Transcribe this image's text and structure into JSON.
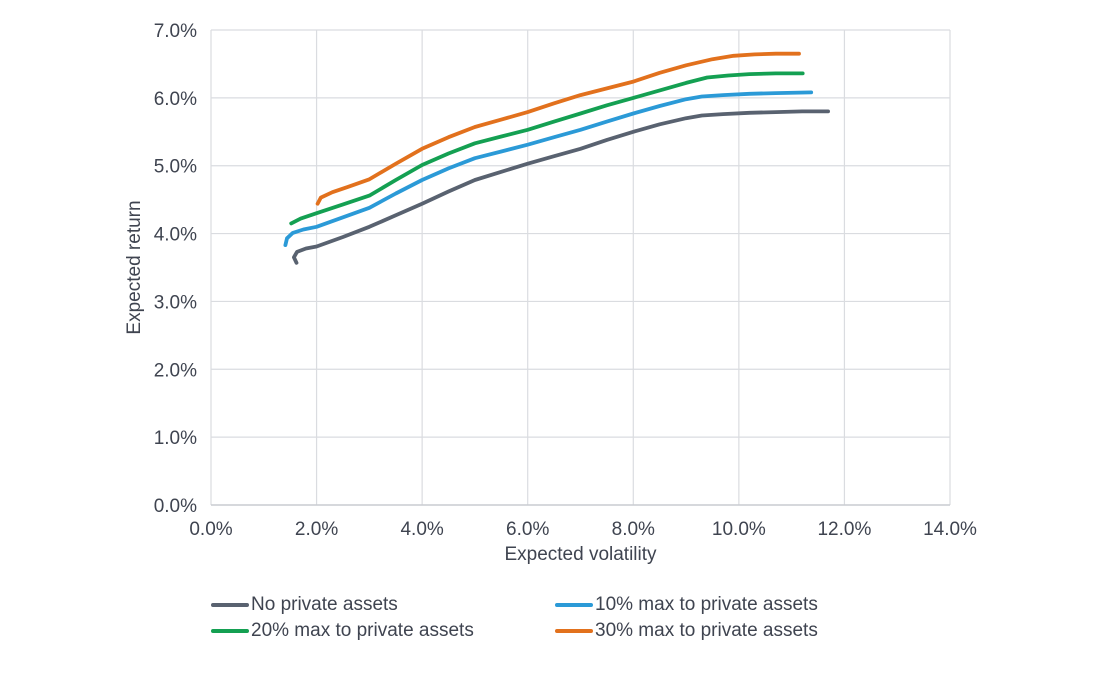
{
  "chart_data": {
    "type": "line",
    "title": "",
    "xlabel": "Expected volatility",
    "ylabel": "Expected return",
    "xlim": [
      0,
      14
    ],
    "ylim": [
      0,
      7
    ],
    "x_ticks": [
      "0.0%",
      "2.0%",
      "4.0%",
      "6.0%",
      "8.0%",
      "10.0%",
      "12.0%",
      "14.0%"
    ],
    "x_tick_values": [
      0,
      2,
      4,
      6,
      8,
      10,
      12,
      14
    ],
    "y_ticks": [
      "0.0%",
      "1.0%",
      "2.0%",
      "3.0%",
      "4.0%",
      "5.0%",
      "6.0%",
      "7.0%"
    ],
    "y_tick_values": [
      0,
      1,
      2,
      3,
      4,
      5,
      6,
      7
    ],
    "grid": true,
    "legend_position": "bottom",
    "units": "percent",
    "colors": {
      "grid": "#DADCE0",
      "axis": "#C9CCD1",
      "text": "#3F4450",
      "background": "#FFFFFF"
    },
    "series": [
      {
        "id": "no-private-assets",
        "name": "No private assets",
        "color": "#596270",
        "points": [
          [
            1.62,
            3.57
          ],
          [
            1.57,
            3.65
          ],
          [
            1.63,
            3.73
          ],
          [
            1.8,
            3.78
          ],
          [
            2.0,
            3.81
          ],
          [
            2.5,
            3.95
          ],
          [
            3.0,
            4.1
          ],
          [
            3.5,
            4.27
          ],
          [
            4.0,
            4.44
          ],
          [
            4.5,
            4.62
          ],
          [
            5.0,
            4.79
          ],
          [
            5.5,
            4.91
          ],
          [
            6.0,
            5.03
          ],
          [
            6.5,
            5.14
          ],
          [
            7.0,
            5.25
          ],
          [
            7.5,
            5.38
          ],
          [
            8.0,
            5.5
          ],
          [
            8.5,
            5.61
          ],
          [
            9.0,
            5.7
          ],
          [
            9.3,
            5.74
          ],
          [
            9.7,
            5.76
          ],
          [
            10.2,
            5.78
          ],
          [
            10.7,
            5.79
          ],
          [
            11.2,
            5.8
          ],
          [
            11.69,
            5.8
          ]
        ]
      },
      {
        "id": "10pct-max-private-assets",
        "name": "10% max to private assets",
        "color": "#2B9AD7",
        "points": [
          [
            1.41,
            3.83
          ],
          [
            1.44,
            3.93
          ],
          [
            1.55,
            4.01
          ],
          [
            1.75,
            4.06
          ],
          [
            2.0,
            4.1
          ],
          [
            2.5,
            4.24
          ],
          [
            3.0,
            4.38
          ],
          [
            3.5,
            4.59
          ],
          [
            4.0,
            4.79
          ],
          [
            4.5,
            4.96
          ],
          [
            5.0,
            5.11
          ],
          [
            5.5,
            5.21
          ],
          [
            6.0,
            5.31
          ],
          [
            6.5,
            5.42
          ],
          [
            7.0,
            5.53
          ],
          [
            7.5,
            5.65
          ],
          [
            8.0,
            5.77
          ],
          [
            8.5,
            5.88
          ],
          [
            9.0,
            5.98
          ],
          [
            9.3,
            6.02
          ],
          [
            9.7,
            6.04
          ],
          [
            10.2,
            6.06
          ],
          [
            10.7,
            6.07
          ],
          [
            11.37,
            6.08
          ]
        ]
      },
      {
        "id": "20pct-max-private-assets",
        "name": "20% max to private assets",
        "color": "#14A052",
        "points": [
          [
            1.52,
            4.15
          ],
          [
            1.7,
            4.22
          ],
          [
            2.0,
            4.3
          ],
          [
            2.5,
            4.43
          ],
          [
            3.0,
            4.56
          ],
          [
            3.5,
            4.79
          ],
          [
            4.0,
            5.01
          ],
          [
            4.5,
            5.18
          ],
          [
            5.0,
            5.33
          ],
          [
            5.5,
            5.43
          ],
          [
            6.0,
            5.53
          ],
          [
            6.5,
            5.65
          ],
          [
            7.0,
            5.77
          ],
          [
            7.5,
            5.89
          ],
          [
            8.0,
            6.0
          ],
          [
            8.5,
            6.11
          ],
          [
            9.0,
            6.22
          ],
          [
            9.4,
            6.3
          ],
          [
            9.8,
            6.33
          ],
          [
            10.2,
            6.35
          ],
          [
            10.7,
            6.36
          ],
          [
            11.21,
            6.36
          ]
        ]
      },
      {
        "id": "30pct-max-private-assets",
        "name": "30% max to private assets",
        "color": "#E2711D",
        "points": [
          [
            2.02,
            4.44
          ],
          [
            2.08,
            4.53
          ],
          [
            2.3,
            4.61
          ],
          [
            2.6,
            4.69
          ],
          [
            3.0,
            4.8
          ],
          [
            3.5,
            5.03
          ],
          [
            4.0,
            5.25
          ],
          [
            4.5,
            5.42
          ],
          [
            5.0,
            5.57
          ],
          [
            5.5,
            5.68
          ],
          [
            6.0,
            5.79
          ],
          [
            6.5,
            5.92
          ],
          [
            7.0,
            6.04
          ],
          [
            7.5,
            6.14
          ],
          [
            8.0,
            6.24
          ],
          [
            8.5,
            6.37
          ],
          [
            9.0,
            6.48
          ],
          [
            9.5,
            6.57
          ],
          [
            9.9,
            6.62
          ],
          [
            10.3,
            6.64
          ],
          [
            10.7,
            6.65
          ],
          [
            11.14,
            6.65
          ]
        ]
      }
    ],
    "legend_rows": [
      [
        "No private assets",
        "10% max to private assets"
      ],
      [
        "20% max to private assets",
        "30% max to private assets"
      ]
    ]
  }
}
